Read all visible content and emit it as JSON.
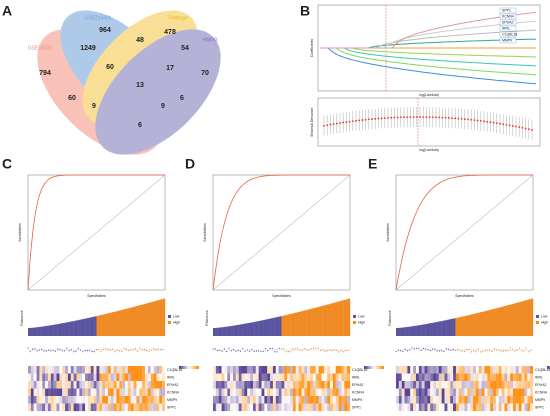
{
  "panels": [
    "A",
    "B",
    "C",
    "D",
    "E"
  ],
  "venn": {
    "sets": [
      "GSE16020",
      "GSE213491",
      "Findings",
      "HMRG"
    ],
    "counts": [
      "964",
      "478",
      "1249",
      "48",
      "54",
      "794",
      "60",
      "17",
      "70",
      "13",
      "60",
      "9",
      "9",
      "6",
      "6"
    ]
  },
  "lasso": {
    "genes": [
      "SPP1",
      "KCNN4",
      "EPHA2",
      "IRRL",
      "C1QBL18",
      "MMP9"
    ],
    "xlabel": "log(Lambda)",
    "ylabel": "Coefficients",
    "ylabel2": "Binomial Deviance"
  },
  "roc": {
    "xlabel": "Specificities",
    "ylabel": "Sensitivities"
  },
  "risk": {
    "ylabel": "Riskscore",
    "legend": [
      "Low",
      "High"
    ]
  },
  "heatmap": {
    "genes": [
      "C1QBL18",
      "IRRL",
      "EPHA2",
      "KCNN4",
      "MMP9",
      "SPP1"
    ]
  }
}
